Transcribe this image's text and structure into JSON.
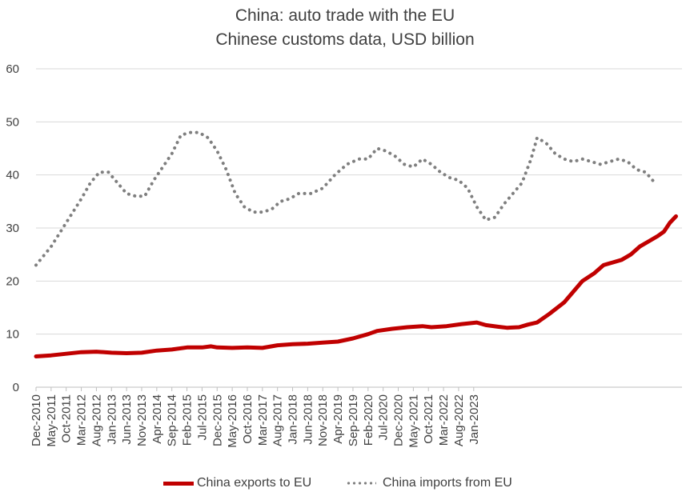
{
  "chart_data": {
    "type": "line",
    "title": "China: auto trade with the EU",
    "subtitle": "Chinese customs data, USD billion",
    "xlabel": "",
    "ylabel": "",
    "ylim": [
      0,
      60
    ],
    "yticks": [
      0,
      10,
      20,
      30,
      40,
      50,
      60
    ],
    "grid": true,
    "legend_position": "bottom",
    "x_tick_labels": [
      "Dec-2010",
      "May-2011",
      "Oct-2011",
      "Mar-2012",
      "Aug-2012",
      "Jan-2013",
      "Jun-2013",
      "Nov-2013",
      "Apr-2014",
      "Sep-2014",
      "Feb-2015",
      "Jul-2015",
      "Dec-2015",
      "May-2016",
      "Oct-2016",
      "Mar-2017",
      "Aug-2017",
      "Jan-2018",
      "Jun-2018",
      "Nov-2018",
      "Apr-2019",
      "Sep-2019",
      "Feb-2020",
      "Jul-2020",
      "Dec-2020",
      "May-2021",
      "Oct-2021",
      "Mar-2022",
      "Aug-2022",
      "Jan-2023"
    ],
    "x_months_range": [
      "Dec-2010",
      "Jun-2023"
    ],
    "series": [
      {
        "name": "China exports to EU",
        "color": "#c00000",
        "style": "solid",
        "points": [
          [
            0,
            5.8
          ],
          [
            5,
            6.0
          ],
          [
            10,
            6.3
          ],
          [
            15,
            6.6
          ],
          [
            20,
            6.7
          ],
          [
            25,
            6.5
          ],
          [
            30,
            6.4
          ],
          [
            35,
            6.5
          ],
          [
            40,
            6.9
          ],
          [
            45,
            7.1
          ],
          [
            50,
            7.5
          ],
          [
            55,
            7.5
          ],
          [
            58,
            7.7
          ],
          [
            60,
            7.5
          ],
          [
            65,
            7.4
          ],
          [
            70,
            7.5
          ],
          [
            75,
            7.4
          ],
          [
            80,
            7.9
          ],
          [
            85,
            8.1
          ],
          [
            90,
            8.2
          ],
          [
            95,
            8.4
          ],
          [
            100,
            8.6
          ],
          [
            105,
            9.2
          ],
          [
            110,
            10.0
          ],
          [
            113,
            10.6
          ],
          [
            118,
            11.0
          ],
          [
            123,
            11.3
          ],
          [
            128,
            11.5
          ],
          [
            131,
            11.3
          ],
          [
            136,
            11.5
          ],
          [
            141,
            11.9
          ],
          [
            146,
            12.2
          ],
          [
            149,
            11.7
          ],
          [
            153,
            11.4
          ],
          [
            156,
            11.2
          ],
          [
            160,
            11.3
          ],
          [
            163,
            11.8
          ],
          [
            166,
            12.2
          ],
          [
            170,
            13.8
          ],
          [
            175,
            16.0
          ],
          [
            178,
            18.0
          ],
          [
            181,
            20.0
          ],
          [
            185,
            21.5
          ],
          [
            188,
            23.0
          ],
          [
            191,
            23.5
          ],
          [
            194,
            24.0
          ],
          [
            197,
            25.0
          ],
          [
            200,
            26.5
          ],
          [
            203,
            27.5
          ],
          [
            206,
            28.5
          ],
          [
            208,
            29.3
          ],
          [
            210,
            31.0
          ],
          [
            212,
            32.2
          ]
        ]
      },
      {
        "name": "China imports from EU",
        "color": "#7f7f7f",
        "style": "dotted",
        "points": [
          [
            0,
            23.0
          ],
          [
            5,
            26.5
          ],
          [
            10,
            31.0
          ],
          [
            15,
            35.5
          ],
          [
            18,
            38.5
          ],
          [
            21,
            40.5
          ],
          [
            24,
            40.5
          ],
          [
            27,
            38.5
          ],
          [
            30,
            36.5
          ],
          [
            33,
            36.0
          ],
          [
            36,
            36.0
          ],
          [
            39,
            39.0
          ],
          [
            42,
            41.5
          ],
          [
            45,
            44.0
          ],
          [
            48,
            47.5
          ],
          [
            51,
            48.0
          ],
          [
            54,
            48.0
          ],
          [
            57,
            47.0
          ],
          [
            60,
            44.5
          ],
          [
            63,
            41.0
          ],
          [
            66,
            36.5
          ],
          [
            69,
            34.0
          ],
          [
            72,
            33.0
          ],
          [
            75,
            33.0
          ],
          [
            78,
            33.5
          ],
          [
            81,
            35.0
          ],
          [
            84,
            35.5
          ],
          [
            87,
            36.5
          ],
          [
            91,
            36.5
          ],
          [
            95,
            37.5
          ],
          [
            99,
            40.0
          ],
          [
            103,
            42.0
          ],
          [
            107,
            43.0
          ],
          [
            110,
            43.0
          ],
          [
            113,
            45.0
          ],
          [
            116,
            44.5
          ],
          [
            119,
            43.5
          ],
          [
            122,
            42.0
          ],
          [
            125,
            41.5
          ],
          [
            128,
            43.0
          ],
          [
            131,
            42.0
          ],
          [
            134,
            40.5
          ],
          [
            137,
            39.5
          ],
          [
            140,
            39.0
          ],
          [
            143,
            37.5
          ],
          [
            146,
            34.0
          ],
          [
            149,
            31.5
          ],
          [
            152,
            32.0
          ],
          [
            155,
            34.5
          ],
          [
            158,
            36.5
          ],
          [
            161,
            38.5
          ],
          [
            164,
            43.0
          ],
          [
            166,
            47.0
          ],
          [
            169,
            46.0
          ],
          [
            172,
            44.0
          ],
          [
            175,
            43.0
          ],
          [
            178,
            42.5
          ],
          [
            181,
            43.0
          ],
          [
            184,
            42.5
          ],
          [
            187,
            42.0
          ],
          [
            190,
            42.5
          ],
          [
            193,
            43.0
          ],
          [
            196,
            42.5
          ],
          [
            199,
            41.0
          ],
          [
            202,
            40.5
          ],
          [
            205,
            38.5
          ]
        ]
      }
    ]
  }
}
